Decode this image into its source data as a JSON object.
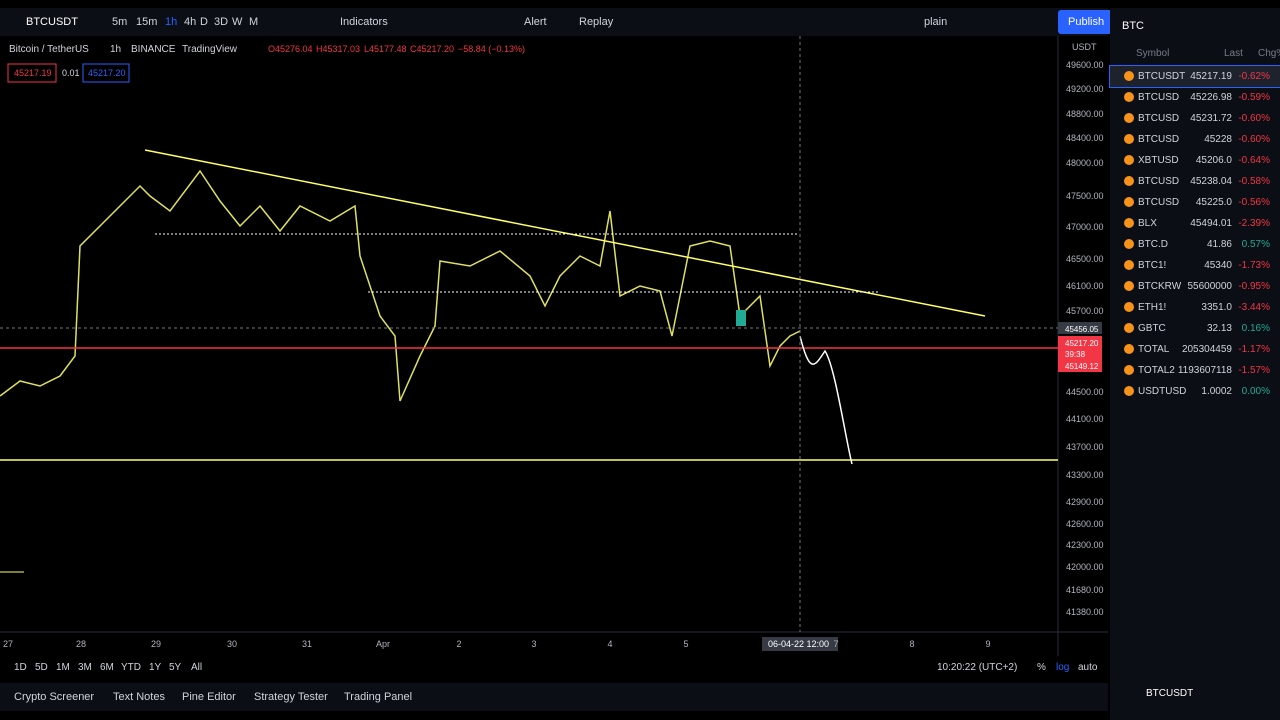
{
  "toolbar": {
    "symbol": "BTCUSDT",
    "intervals": [
      "5m",
      "15m",
      "1h",
      "4h",
      "D",
      "3D",
      "W",
      "M"
    ],
    "indicators": "Indicators",
    "alert": "Alert",
    "replay": "Replay",
    "style": "plain",
    "publish": "Publish"
  },
  "legend": {
    "pair": "Bitcoin / TetherUS",
    "interval": "1h",
    "exchange": "BINANCE",
    "source": "TradingView",
    "open": "O45276.04",
    "high": "H45317.03",
    "low": "L45177.48",
    "close": "C45217.20",
    "change": "−58.84 (−0.13%)",
    "sell": "45217.19",
    "spread": "0.01",
    "buy": "45217.20"
  },
  "price_axis": {
    "currency": "USDT",
    "labels": [
      "49600.00",
      "49200.00",
      "48800.00",
      "48400.00",
      "48000.00",
      "47500.00",
      "47000.00",
      "46500.00",
      "46100.00",
      "45700.00",
      "44500.00",
      "44100.00",
      "43700.00",
      "43300.00",
      "42900.00",
      "42600.00",
      "42300.00",
      "42000.00",
      "41680.00",
      "41380.00"
    ],
    "crosshair": "45456.05",
    "last_price": "45217.20",
    "countdown": "39:38",
    "low_price": "45149.12"
  },
  "time_axis": {
    "labels": [
      "27",
      "28",
      "29",
      "30",
      "31",
      "Apr",
      "2",
      "3",
      "4",
      "5",
      "7",
      "8",
      "9"
    ],
    "crosshair": "06-04-22  12:00"
  },
  "range_bar": {
    "ranges": [
      "1D",
      "5D",
      "1M",
      "3M",
      "6M",
      "YTD",
      "1Y",
      "5Y",
      "All"
    ],
    "clock": "10:20:22 (UTC+2)",
    "percent": "%",
    "log": "log",
    "auto": "auto"
  },
  "tabs": [
    "Crypto Screener",
    "Text Notes",
    "Pine Editor",
    "Strategy Tester",
    "Trading Panel"
  ],
  "watchlist": {
    "title": "BTC",
    "columns": [
      "Symbol",
      "Last",
      "Chg%"
    ],
    "rows": [
      [
        "BTCUSDT",
        "45217.19",
        "-0.62%"
      ],
      [
        "BTCUSD",
        "45226.98",
        "-0.59%"
      ],
      [
        "BTCUSD",
        "45231.72",
        "-0.60%"
      ],
      [
        "BTCUSD",
        "45228",
        "-0.60%"
      ],
      [
        "XBTUSD",
        "45206.0",
        "-0.64%"
      ],
      [
        "BTCUSD",
        "45238.04",
        "-0.58%"
      ],
      [
        "BTCUSD",
        "45225.0",
        "-0.56%"
      ],
      [
        "BLX",
        "45494.01",
        "-2.39%"
      ],
      [
        "BTC.D",
        "41.86",
        "0.57%"
      ],
      [
        "BTC1!",
        "45340",
        "-1.73%"
      ],
      [
        "BTCKRW",
        "55600000",
        "-0.95%"
      ],
      [
        "ETH1!",
        "3351.0",
        "-3.44%"
      ],
      [
        "GBTC",
        "32.13",
        "0.16%"
      ],
      [
        "TOTAL",
        "205304459",
        "-1.17%"
      ],
      [
        "TOTAL2",
        "1193607118",
        "-1.57%"
      ],
      [
        "USDTUSD",
        "1.0002",
        "0.00%"
      ]
    ],
    "footer": "BTCUSDT"
  }
}
